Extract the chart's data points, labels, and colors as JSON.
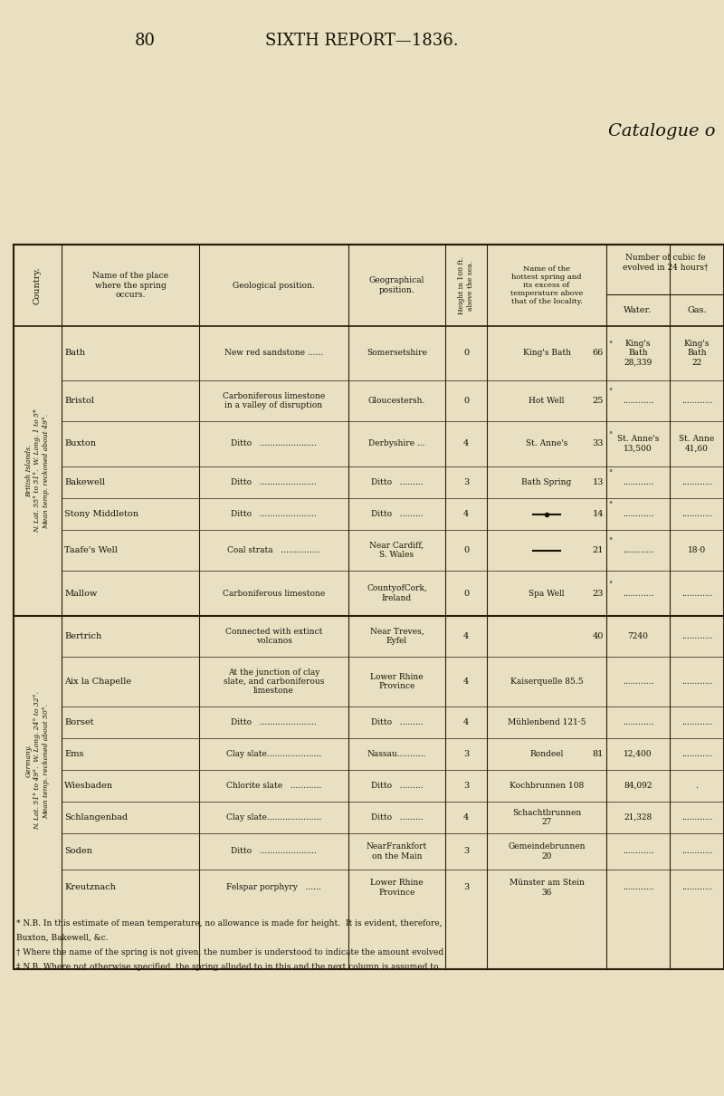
{
  "page_number": "80",
  "page_header": "SIXTH REPORT—1836.",
  "catalogue_title": "Catalogue o",
  "bg_color": "#e8e0c0",
  "text_color": "#1a1008",
  "table_border_color": "#2a1a08",
  "header_cols": [
    "Country.",
    "Name of the place\nwhere the spring\noccurs.",
    "Geological position.",
    "Geographical\nposition.",
    "Height in 100 ft.\nabove the sea.",
    "Name of the\nhottest spring and\nits excess of\ntemperature above\nthat of the locality.",
    "",
    "Number of cubic fe\nevolved in 24 hours†",
    ""
  ],
  "subheader_water": "Water.",
  "subheader_gas": "Gas.",
  "section1_label": "British Islands.\nN. Lat. 55° to 51°. W. Long. 1 to 5*\nMean temp. reckoned about 49°.",
  "section2_label": "Germany.\nN. Lat. 51° to 49°. W. Long. 24° to 32°.\nMean temp. reckoned about 50°.",
  "rows_section1": [
    [
      "Bath",
      "New red sandstone ......",
      "Somersetshire",
      "0",
      "King's Bath",
      "66",
      "King's\nBath\n28,339",
      "King's\nBath\n22"
    ],
    [
      "Bristol",
      "Carboniferous limestone\nin a valley of disruption",
      "Gloucestersh.",
      "0",
      "Hot Well",
      "25",
      "............",
      "............"
    ],
    [
      "Buxton",
      "Ditto   ......................",
      "Derbyshire ...",
      "4",
      "St. Anne's",
      "33",
      "St. Anne's\n13,500",
      "St. Anne\n41,60"
    ],
    [
      "Bakewell",
      "Ditto   ......................",
      "Ditto   .........",
      "3",
      "Bath Spring",
      "13",
      "............",
      "............"
    ],
    [
      "Stony Middleton",
      "Ditto   ......................",
      "Ditto   .........",
      "4",
      "—●—",
      "14",
      "............",
      "............"
    ],
    [
      "Taafe's Well",
      "Coal strata   ...............",
      "Near Cardiff,\nS. Wales",
      "0",
      "———",
      "21",
      "............",
      "18·0"
    ],
    [
      "Mallow",
      "Carboniferous limestone",
      "CountyofCork,\nIreland",
      "0",
      "Spa Well",
      "23",
      "............",
      "............"
    ]
  ],
  "rows_section2": [
    [
      "Bertrich",
      "Connected with extinct\nvolcanos",
      "Near Treves,\nEyfel",
      "4",
      "",
      "40",
      "7240",
      "............"
    ],
    [
      "Aix la Chapelle",
      "At the junction of clay\nslate, and carboniferous\nlimestone",
      "Lower Rhine\nProvince",
      "4",
      "Kaiserquelle 85.5",
      "",
      "............",
      "............"
    ],
    [
      "Borset",
      "Ditto   ......................",
      "Ditto   .........",
      "4",
      "Mühlenbend 121·5",
      "",
      "............",
      "............"
    ],
    [
      "Ems",
      "Clay slate.....................",
      "Nassau...........",
      "3",
      "Rondeel",
      "81",
      "12,400",
      "............"
    ],
    [
      "Wiesbaden",
      "Chlorite slate   ............",
      "Ditto   .........",
      "3",
      "Kochbrunnen 108",
      "",
      "84,092",
      "."
    ],
    [
      "Schlangenbad",
      "Clay slate.....................",
      "Ditto   .........",
      "4",
      "Schachtbrunnen\n27",
      "",
      "21,328",
      "............"
    ],
    [
      "Soden",
      "Ditto   ......................",
      "NearFrankfort\non the Main",
      "3",
      "Gemeindebrunnen\n20",
      "",
      "............",
      "............"
    ],
    [
      "Kreutznach",
      "Felspar porphyry   ......",
      "Lower Rhine\nProvince",
      "3",
      "Münster am Stein\n36",
      "",
      "............",
      "............"
    ]
  ],
  "footnote1": "* N.B. In this estimate of mean temperature, no allowance is made for height.  It is evident, therefore,",
  "footnote2": "Buxton, Bakewell, &c.",
  "footnote3": "† Where the name of the spring is not given, the number is understood to indicate the amount evolved",
  "footnote4": "‡ N.B. Where not otherwise specified, the spring alluded to in this and the next column is assumed to"
}
